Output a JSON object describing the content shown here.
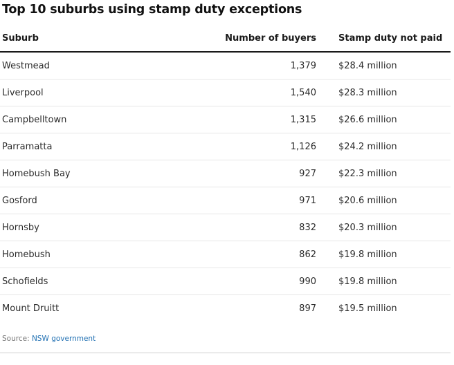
{
  "title": "Top 10 suburbs using stamp duty exceptions",
  "chart_data": {
    "type": "table",
    "title": "Top 10 suburbs using stamp duty exceptions",
    "columns": [
      "Suburb",
      "Number of buyers",
      "Stamp duty not paid"
    ],
    "rows": [
      {
        "suburb": "Westmead",
        "buyers": "1,379",
        "stamp_duty": "$28.4 million"
      },
      {
        "suburb": "Liverpool",
        "buyers": "1,540",
        "stamp_duty": "$28.3 million"
      },
      {
        "suburb": "Campbelltown",
        "buyers": "1,315",
        "stamp_duty": "$26.6 million"
      },
      {
        "suburb": "Parramatta",
        "buyers": "1,126",
        "stamp_duty": "$24.2 million"
      },
      {
        "suburb": "Homebush Bay",
        "buyers": "927",
        "stamp_duty": "$22.3 million"
      },
      {
        "suburb": "Gosford",
        "buyers": "971",
        "stamp_duty": "$20.6 million"
      },
      {
        "suburb": "Hornsby",
        "buyers": "832",
        "stamp_duty": "$20.3 million"
      },
      {
        "suburb": "Homebush",
        "buyers": "862",
        "stamp_duty": "$19.8 million"
      },
      {
        "suburb": "Schofields",
        "buyers": "990",
        "stamp_duty": "$19.8 million"
      },
      {
        "suburb": "Mount Druitt",
        "buyers": "897",
        "stamp_duty": "$19.5 million"
      }
    ]
  },
  "source": {
    "prefix": "Source: ",
    "link_text": "NSW government",
    "link_color": "#1f6fb2"
  }
}
